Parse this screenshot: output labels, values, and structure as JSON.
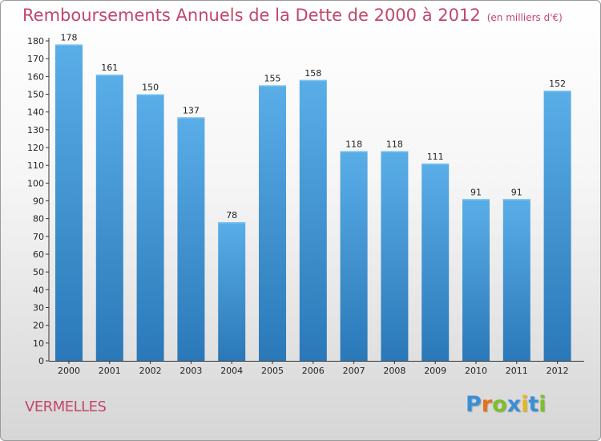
{
  "chart_data": {
    "type": "bar",
    "title": "Remboursements Annuels de la Dette de 2000 à 2012",
    "subtitle": "(en milliers d'€)",
    "categories": [
      "2000",
      "2001",
      "2002",
      "2003",
      "2004",
      "2005",
      "2006",
      "2007",
      "2008",
      "2009",
      "2010",
      "2011",
      "2012"
    ],
    "values": [
      178,
      161,
      150,
      137,
      78,
      155,
      158,
      118,
      118,
      111,
      91,
      91,
      152
    ],
    "ylim": [
      0,
      180
    ],
    "yticks": [
      0,
      10,
      20,
      30,
      40,
      50,
      60,
      70,
      80,
      90,
      100,
      110,
      120,
      130,
      140,
      150,
      160,
      170,
      180
    ],
    "xlabel": "",
    "ylabel": "",
    "grid": false,
    "bar_color_top": "#5aaee8",
    "bar_color_bottom": "#2a78b8"
  },
  "commune": "VERMELLES",
  "logo": {
    "letters": [
      "P",
      "r",
      "o",
      "x",
      "i",
      "t",
      "i"
    ],
    "colors": [
      "#3a8fd6",
      "#e8701a",
      "#7cbf2a",
      "#3a8fd6",
      "#e8b81a",
      "#3a8fd6",
      "#7cbf2a"
    ]
  },
  "colors": {
    "title": "#c2476a",
    "axis": "#333333"
  }
}
